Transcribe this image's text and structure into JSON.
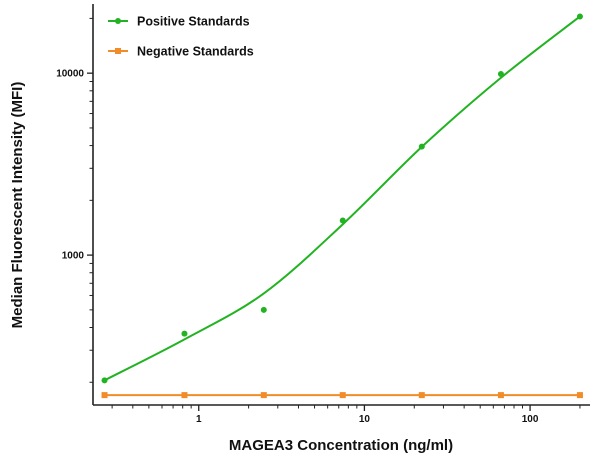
{
  "chart_data": {
    "type": "scatter",
    "title": "",
    "xlabel": "MAGEA3 Concentration (ng/ml)",
    "ylabel": "Median Fluorescent Intensity (MFI)",
    "x_scale": "log",
    "y_scale": "log",
    "xlim": [
      0.23,
      230
    ],
    "ylim": [
      150,
      24000
    ],
    "x_ticks": [
      1,
      10,
      100
    ],
    "x_tick_labels": [
      "1",
      "10",
      "100"
    ],
    "y_ticks": [
      1000,
      10000
    ],
    "y_tick_labels": [
      "1000",
      "10000"
    ],
    "grid": false,
    "legend_position": "top-left",
    "series": [
      {
        "name": "Positive Standards",
        "color": "#22b322",
        "marker": "circle",
        "fit": "sigmoidal curve",
        "x": [
          0.27,
          0.82,
          2.47,
          7.4,
          22.2,
          66.7,
          200
        ],
        "y": [
          205,
          370,
          500,
          1550,
          3950,
          9900,
          20500
        ]
      },
      {
        "name": "Negative Standards",
        "color": "#f28c28",
        "marker": "square",
        "fit": "line",
        "x": [
          0.27,
          0.82,
          2.47,
          7.4,
          22.2,
          66.7,
          200
        ],
        "y": [
          170,
          170,
          170,
          170,
          170,
          170,
          170
        ]
      }
    ]
  }
}
